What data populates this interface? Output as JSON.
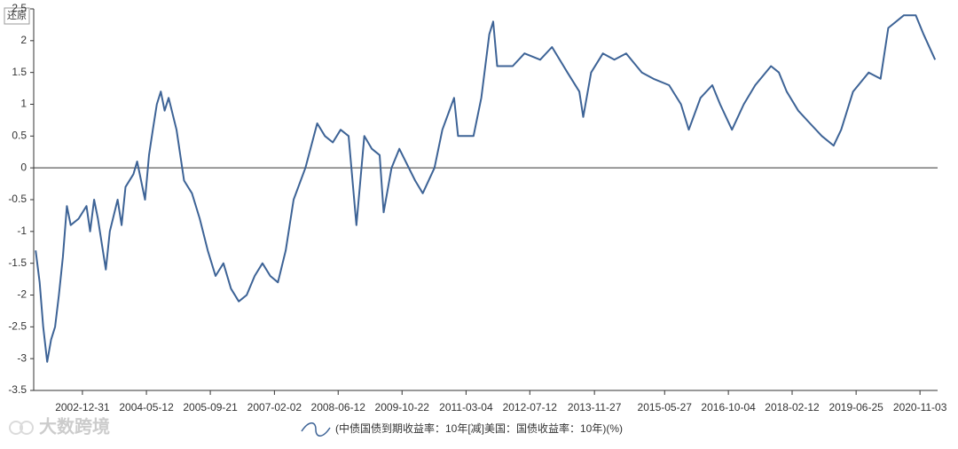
{
  "chart_data": {
    "type": "line",
    "button": "还原",
    "watermark": "大数跨境",
    "x": [
      "2002-01",
      "2002-02",
      "2002-03",
      "2002-04",
      "2002-05",
      "2002-06",
      "2002-07",
      "2002-08",
      "2002-09",
      "2002-10",
      "2002-12",
      "2003-02",
      "2003-03",
      "2003-04",
      "2003-05",
      "2003-07",
      "2003-08",
      "2003-10",
      "2003-11",
      "2003-12",
      "2004-02",
      "2004-03",
      "2004-05",
      "2004-06",
      "2004-07",
      "2004-08",
      "2004-09",
      "2004-10",
      "2004-11",
      "2005-01",
      "2005-03",
      "2005-05",
      "2005-07",
      "2005-09",
      "2005-11",
      "2006-01",
      "2006-03",
      "2006-05",
      "2006-07",
      "2006-09",
      "2006-11",
      "2007-01",
      "2007-03",
      "2007-05",
      "2007-07",
      "2007-10",
      "2008-01",
      "2008-03",
      "2008-05",
      "2008-07",
      "2008-09",
      "2008-11",
      "2009-01",
      "2009-03",
      "2009-05",
      "2009-06",
      "2009-08",
      "2009-10",
      "2010-02",
      "2010-04",
      "2010-07",
      "2010-09",
      "2010-12",
      "2011-01",
      "2011-05",
      "2011-07",
      "2011-09",
      "2011-10",
      "2011-11",
      "2012-03",
      "2012-06",
      "2012-10",
      "2013-01",
      "2013-05",
      "2013-08",
      "2013-09",
      "2013-11",
      "2014-02",
      "2014-05",
      "2014-08",
      "2014-12",
      "2015-03",
      "2015-07",
      "2015-10",
      "2015-12",
      "2016-03",
      "2016-06",
      "2016-08",
      "2016-11",
      "2017-02",
      "2017-05",
      "2017-09",
      "2017-11",
      "2018-01",
      "2018-04",
      "2018-07",
      "2018-10",
      "2019-01",
      "2019-03",
      "2019-06",
      "2019-10",
      "2020-01",
      "2020-03",
      "2020-07",
      "2020-10",
      "2020-12",
      "2021-03"
    ],
    "series": [
      {
        "name": "(中债国债到期收益率：10年[减]美国：国债收益率：10年)(%)",
        "color": "#3d6396",
        "values": [
          -1.3,
          -1.8,
          -2.5,
          -3.05,
          -2.7,
          -2.5,
          -2.0,
          -1.4,
          -0.6,
          -0.9,
          -0.8,
          -0.6,
          -1.0,
          -0.5,
          -0.8,
          -1.6,
          -1.0,
          -0.5,
          -0.9,
          -0.3,
          -0.1,
          0.1,
          -0.5,
          0.2,
          0.6,
          1.0,
          1.2,
          0.9,
          1.1,
          0.6,
          -0.2,
          -0.4,
          -0.8,
          -1.3,
          -1.7,
          -1.5,
          -1.9,
          -2.1,
          -2.0,
          -1.7,
          -1.5,
          -1.7,
          -1.8,
          -1.3,
          -0.5,
          0.0,
          0.7,
          0.5,
          0.4,
          0.6,
          0.5,
          -0.9,
          0.5,
          0.3,
          0.2,
          -0.7,
          0.0,
          0.3,
          -0.2,
          -0.4,
          0.0,
          0.6,
          1.1,
          0.5,
          0.5,
          1.1,
          2.1,
          2.3,
          1.6,
          1.6,
          1.8,
          1.7,
          1.9,
          1.5,
          1.2,
          0.8,
          1.5,
          1.8,
          1.7,
          1.8,
          1.5,
          1.4,
          1.3,
          1.0,
          0.6,
          1.1,
          1.3,
          1.0,
          0.6,
          1.0,
          1.3,
          1.6,
          1.5,
          1.2,
          0.9,
          0.7,
          0.5,
          0.35,
          0.6,
          1.2,
          1.5,
          1.4,
          2.2,
          2.4,
          2.4,
          2.1,
          1.7
        ]
      }
    ],
    "xlim": [
      "2001-12-17",
      "2021-03-20"
    ],
    "xticks": [
      "2002-12-31",
      "2004-05-12",
      "2005-09-21",
      "2007-02-02",
      "2008-06-12",
      "2009-10-22",
      "2011-03-04",
      "2012-07-12",
      "2013-11-27",
      "2015-05-27",
      "2016-10-04",
      "2018-02-12",
      "2019-06-25",
      "2020-11-03"
    ],
    "ylim": [
      -3.5,
      2.5
    ],
    "yticks": [
      -3.5,
      -3,
      -2.5,
      -2,
      -1.5,
      -1,
      -0.5,
      0,
      0.5,
      1,
      1.5,
      2,
      2.5
    ],
    "zero_line": true,
    "legend": "bottom"
  }
}
